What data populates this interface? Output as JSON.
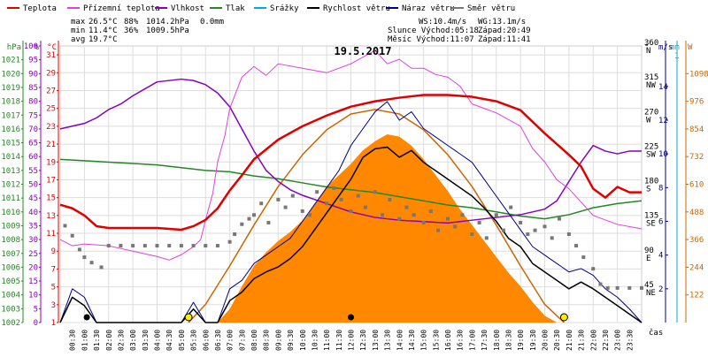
{
  "chart_data": {
    "type": "line",
    "title": "19.5.2017",
    "xlabel": "čas",
    "legend": {
      "placement": "top",
      "items": [
        {
          "key": "teplota",
          "label": "Teplota",
          "color": "#e00000"
        },
        {
          "key": "pocitova",
          "label": "Přízemní teplota",
          "color": "#e040e0"
        },
        {
          "key": "vlhkost",
          "label": "Vlhkost",
          "color": "#8800bb"
        },
        {
          "key": "tlak",
          "label": "Tlak",
          "color": "#228822"
        },
        {
          "key": "srazky",
          "label": "Srážky",
          "color": "#00aadd"
        },
        {
          "key": "rychlost",
          "label": "Rychlost větru",
          "color": "#000000"
        },
        {
          "key": "naraz",
          "label": "Náraz větru",
          "color": "#000088"
        },
        {
          "key": "smer",
          "label": "Směr větru",
          "color": "#777777"
        }
      ]
    },
    "stats": {
      "max_label": "max",
      "max_temp": "26.5°C",
      "max_hum": "88%",
      "max_press": "1014.2hPa",
      "max_rain": "0.0mm",
      "min_label": "min",
      "min_temp": "11.4°C",
      "min_hum": "36%",
      "min_press": "1009.5hPa",
      "avg_label": "avg",
      "avg_temp": "19.7°C",
      "ws": "WS:10.4m/s",
      "wg": "WG:13.1m/s",
      "sun_rise": "Slunce Východ:05:18",
      "sun_set": "Západ:20:49",
      "moon_rise": "Měsíc Východ:11:07",
      "moon_set": "Západ:11:41"
    },
    "axes": {
      "hpa": {
        "label": "hPa",
        "ticks": [
          "1002",
          "1003",
          "1004",
          "1005",
          "1006",
          "1007",
          "1008",
          "1009",
          "1010",
          "1011",
          "1012",
          "1013",
          "1014",
          "1015",
          "1016",
          "1017",
          "1018",
          "1019",
          "1020",
          "1021"
        ],
        "range": [
          1002,
          1022
        ]
      },
      "pct": {
        "label": "%",
        "ticks": [
          "0",
          "5",
          "10",
          "15",
          "20",
          "25",
          "30",
          "35",
          "40",
          "45",
          "50",
          "55",
          "60",
          "65",
          "70",
          "75",
          "80",
          "85",
          "90",
          "95",
          "100"
        ],
        "range": [
          0,
          100
        ]
      },
      "temp": {
        "label": "°C",
        "ticks": [
          "1",
          "3",
          "5",
          "7",
          "9",
          "11",
          "13",
          "15",
          "17",
          "19",
          "21",
          "23",
          "25",
          "27",
          "29",
          "31"
        ],
        "range": [
          1,
          32
        ]
      },
      "dir": {
        "label": "°",
        "ticks": [
          {
            "deg": "45",
            "dir": "NE",
            "v": 45
          },
          {
            "deg": "90",
            "dir": "E",
            "v": 90
          },
          {
            "deg": "135",
            "dir": "SE",
            "v": 135
          },
          {
            "deg": "180",
            "dir": "S",
            "v": 180
          },
          {
            "deg": "225",
            "dir": "SW",
            "v": 225
          },
          {
            "deg": "270",
            "dir": "W",
            "v": 270
          },
          {
            "deg": "315",
            "dir": "NW",
            "v": 315
          },
          {
            "deg": "360",
            "dir": "N",
            "v": 360
          }
        ],
        "range": [
          0,
          360
        ]
      },
      "ms": {
        "label": "m/s",
        "ticks": [
          "2",
          "4",
          "6",
          "8",
          "10",
          "12",
          "14"
        ],
        "range": [
          0,
          16.4
        ]
      },
      "mm": {
        "label": "mm",
        "ticks": [
          "1"
        ]
      },
      "w": {
        "label": "W",
        "ticks": [
          "122",
          "244",
          "366",
          "488",
          "610",
          "732",
          "854",
          "976",
          "1098"
        ],
        "range": [
          0,
          1220
        ]
      }
    },
    "x_ticks": [
      "00:30",
      "01:00",
      "01:30",
      "02:00",
      "02:30",
      "03:00",
      "03:30",
      "04:00",
      "04:30",
      "05:00",
      "05:30",
      "06:00",
      "06:30",
      "07:00",
      "07:30",
      "08:00",
      "08:30",
      "09:00",
      "09:30",
      "10:00",
      "10:30",
      "11:00",
      "11:30",
      "12:00",
      "12:30",
      "13:00",
      "13:30",
      "14:00",
      "14:30",
      "15:00",
      "15:30",
      "16:00",
      "16:30",
      "17:00",
      "17:30",
      "18:00",
      "18:30",
      "19:00",
      "19:30",
      "20:00",
      "20:30",
      "21:00",
      "21:30",
      "22:00",
      "22:30",
      "23:00",
      "23:30"
    ],
    "x_range": [
      0,
      24
    ],
    "series": {
      "teplota": {
        "x": [
          0,
          0.5,
          1,
          1.5,
          2,
          3,
          4,
          5,
          5.5,
          6,
          6.5,
          7,
          7.5,
          8,
          9,
          10,
          11,
          12,
          13,
          14,
          15,
          16,
          17,
          18,
          19,
          19.5,
          20,
          20.5,
          21,
          21.5,
          22,
          22.5,
          23,
          23.5,
          24
        ],
        "y": [
          14.2,
          13.8,
          13,
          11.8,
          11.6,
          11.6,
          11.6,
          11.4,
          11.8,
          12.5,
          13.8,
          15.8,
          17.5,
          19.3,
          21.5,
          23,
          24.2,
          25.2,
          25.8,
          26.2,
          26.5,
          26.5,
          26.3,
          25.8,
          24.8,
          23.5,
          22.2,
          21,
          19.8,
          18.5,
          16,
          15,
          16.2,
          15.6,
          15.6
        ]
      },
      "pocitova": {
        "x": [
          0,
          0.5,
          1,
          2,
          3,
          4,
          4.5,
          5,
          5.5,
          5.8,
          6,
          6.3,
          6.5,
          6.8,
          7,
          7.5,
          8,
          8.5,
          9,
          10,
          11,
          12,
          13,
          13.5,
          14,
          14.5,
          15,
          15.5,
          16,
          16.5,
          17,
          18,
          19,
          19.5,
          20,
          20.5,
          21,
          21.5,
          22,
          23,
          24
        ],
        "y": [
          10.3,
          9.6,
          9.8,
          9.6,
          9,
          8.4,
          8,
          8.6,
          9.5,
          10.3,
          12.5,
          15.5,
          19,
          22,
          25,
          28.5,
          29.7,
          28.7,
          30,
          29.5,
          29,
          30,
          31.5,
          30,
          30.5,
          29.5,
          29.5,
          28.8,
          28.5,
          27.5,
          25.5,
          24.5,
          23,
          20.5,
          19,
          17,
          16,
          14.5,
          13,
          12,
          11.5
        ]
      },
      "vlhkost": {
        "x": [
          0,
          0.5,
          1,
          1.5,
          2,
          2.5,
          3,
          4,
          5,
          5.5,
          6,
          6.5,
          7,
          7.5,
          8,
          8.5,
          9,
          9.5,
          10,
          11,
          12,
          13,
          14,
          15,
          16,
          17,
          18,
          19,
          20,
          20.5,
          21,
          21.5,
          22,
          22.5,
          23,
          23.5,
          24
        ],
        "y": [
          70,
          71,
          72,
          74,
          77,
          79,
          82,
          87,
          88,
          87.5,
          86,
          83,
          78,
          70,
          62,
          55,
          51,
          48,
          46,
          43,
          40,
          38,
          37,
          36.5,
          36,
          37,
          38,
          39,
          41,
          44,
          51,
          58,
          64,
          62,
          61,
          62,
          62
        ]
      },
      "tlak": {
        "x": [
          0,
          1,
          2,
          3,
          4,
          5,
          6,
          7,
          8,
          9,
          10,
          11,
          12,
          13,
          14,
          15,
          16,
          17,
          18,
          19,
          20,
          21,
          22,
          23,
          24
        ],
        "y": [
          1013.8,
          1013.7,
          1013.6,
          1013.5,
          1013.4,
          1013.2,
          1013,
          1012.9,
          1012.6,
          1012.4,
          1012.1,
          1011.8,
          1011.6,
          1011.4,
          1011.1,
          1010.8,
          1010.5,
          1010.3,
          1010,
          1009.7,
          1009.5,
          1009.8,
          1010.3,
          1010.6,
          1010.8
        ]
      },
      "rychlost": {
        "x": [
          0,
          0.5,
          1,
          1.5,
          2,
          3,
          4,
          5,
          5.5,
          6,
          6.5,
          7,
          7.5,
          8,
          8.5,
          9,
          9.5,
          10,
          10.5,
          11,
          11.5,
          12,
          12.5,
          13,
          13.5,
          14,
          14.5,
          15,
          15.5,
          16,
          16.5,
          17,
          17.5,
          18,
          18.5,
          19,
          19.5,
          20,
          20.5,
          21,
          21.5,
          22,
          22.5,
          23,
          23.5,
          24
        ],
        "y": [
          0,
          1.5,
          1,
          0,
          0,
          0,
          0,
          0,
          0.8,
          0,
          0,
          1.3,
          1.8,
          2.6,
          3,
          3.3,
          3.8,
          4.5,
          5.5,
          6.5,
          7.5,
          8.5,
          9.8,
          10.3,
          10.4,
          9.8,
          10.2,
          9.5,
          9,
          8.5,
          8,
          7.5,
          6.8,
          6,
          5,
          4.5,
          3.5,
          3,
          2.5,
          2,
          2.4,
          2,
          1.5,
          1,
          0.5,
          0
        ]
      },
      "naraz": {
        "x": [
          0,
          0.5,
          1,
          1.5,
          2,
          3,
          4,
          5,
          5.5,
          6,
          6.5,
          7,
          7.5,
          8,
          8.5,
          9,
          9.5,
          10,
          10.5,
          11,
          11.5,
          12,
          12.5,
          13,
          13.5,
          14,
          14.5,
          15,
          15.5,
          16,
          16.5,
          17,
          17.5,
          18,
          18.5,
          19,
          19.5,
          20,
          20.5,
          21,
          21.5,
          22,
          22.5,
          23,
          23.5,
          24
        ],
        "y": [
          0,
          2,
          1.5,
          0,
          0,
          0,
          0,
          0,
          1.2,
          0,
          0,
          2,
          2.5,
          3.5,
          4,
          4.5,
          5,
          6,
          7,
          8,
          9,
          10.5,
          11.5,
          12.5,
          13.1,
          12,
          12.5,
          11.5,
          11,
          10.5,
          10,
          9.5,
          8.5,
          7.5,
          6.5,
          5.5,
          4.5,
          4,
          3.5,
          3,
          3.2,
          2.8,
          2,
          1.5,
          0.8,
          0
        ]
      },
      "smer": {
        "x": [
          0.2,
          0.5,
          0.8,
          1,
          1.3,
          1.7,
          2,
          2.5,
          3,
          3.5,
          4,
          4.5,
          5,
          5.5,
          6,
          6.5,
          7,
          7.2,
          7.5,
          7.8,
          8,
          8.3,
          8.6,
          9,
          9.3,
          9.6,
          10,
          10.3,
          10.6,
          11,
          11.3,
          11.6,
          12,
          12.3,
          12.6,
          13,
          13.3,
          13.6,
          14,
          14.3,
          14.6,
          15,
          15.3,
          15.6,
          16,
          16.3,
          16.6,
          17,
          17.3,
          17.6,
          18,
          18.3,
          18.6,
          19,
          19.3,
          19.6,
          20,
          20.3,
          20.6,
          21,
          21.3,
          21.6,
          22,
          22.3,
          22.6,
          23,
          23.5,
          24
        ],
        "y": [
          126,
          113,
          95,
          85,
          78,
          72,
          100,
          100,
          100,
          100,
          100,
          100,
          100,
          100,
          100,
          100,
          105,
          115,
          128,
          135,
          140,
          155,
          130,
          160,
          150,
          165,
          145,
          140,
          170,
          155,
          175,
          160,
          145,
          165,
          150,
          170,
          140,
          160,
          135,
          150,
          140,
          130,
          145,
          120,
          135,
          125,
          140,
          115,
          130,
          110,
          140,
          120,
          150,
          130,
          115,
          120,
          125,
          110,
          135,
          115,
          100,
          85,
          70,
          50,
          45,
          45,
          45,
          45
        ]
      },
      "radiace": {
        "x": [
          6.5,
          7,
          7.5,
          8,
          8.5,
          9,
          9.5,
          10,
          10.5,
          11,
          11.5,
          12,
          12.5,
          13,
          13.5,
          14,
          14.5,
          15,
          15.5,
          16,
          16.5,
          17,
          17.5,
          18,
          18.5,
          19,
          19.5,
          20,
          20.5
        ],
        "y": [
          0,
          60,
          160,
          250,
          310,
          360,
          400,
          450,
          520,
          600,
          650,
          700,
          760,
          800,
          830,
          820,
          780,
          720,
          650,
          580,
          500,
          430,
          360,
          290,
          220,
          160,
          90,
          30,
          0
        ]
      },
      "radiace_teor": {
        "x": [
          5.3,
          6,
          7,
          8,
          9,
          10,
          11,
          12,
          13,
          14,
          15,
          16,
          17,
          18,
          19,
          20,
          20.8
        ],
        "y": [
          0,
          80,
          250,
          430,
          600,
          740,
          850,
          920,
          940,
          920,
          850,
          740,
          600,
          430,
          250,
          80,
          0
        ]
      }
    },
    "markers": [
      {
        "kind": "moon",
        "x": 1.1,
        "color": "#000000"
      },
      {
        "kind": "sun",
        "x": 5.3,
        "color": "#ffee00"
      },
      {
        "kind": "moon",
        "x": 12,
        "color": "#000000"
      },
      {
        "kind": "sun",
        "x": 20.8,
        "color": "#ffee00"
      }
    ],
    "colors": {
      "radiace": "#ff8800",
      "radiace_teor": "#cc6600",
      "sun_marker": "#ffee00"
    }
  }
}
